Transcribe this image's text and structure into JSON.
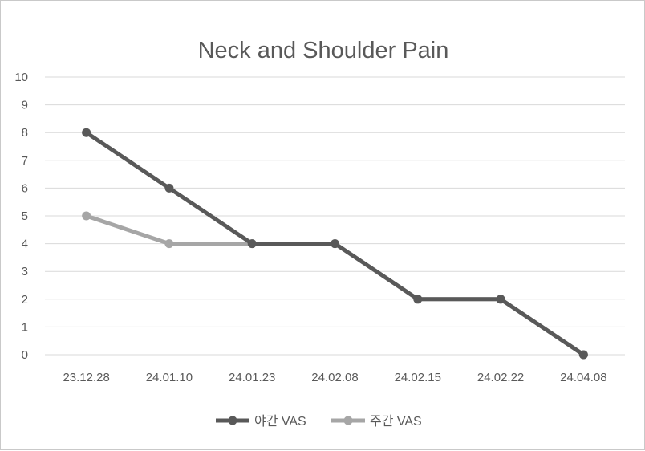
{
  "chart_data": {
    "type": "line",
    "title": "Neck and Shoulder Pain",
    "xlabel": "",
    "ylabel": "",
    "categories": [
      "23.12.28",
      "24.01.10",
      "24.01.23",
      "24.02.08",
      "24.02.15",
      "24.02.22",
      "24.04.08"
    ],
    "ylim": [
      0,
      10
    ],
    "yticks": [
      "0",
      "1",
      "2",
      "3",
      "4",
      "5",
      "6",
      "7",
      "8",
      "9",
      "10"
    ],
    "grid": true,
    "legend_position": "bottom",
    "series": [
      {
        "name": "야간 VAS",
        "color": "#595959",
        "values": [
          8,
          6,
          4,
          4,
          2,
          2,
          0
        ]
      },
      {
        "name": "주간 VAS",
        "color": "#a6a6a6",
        "values": [
          5,
          4,
          4,
          4,
          2,
          2,
          0
        ]
      }
    ]
  }
}
